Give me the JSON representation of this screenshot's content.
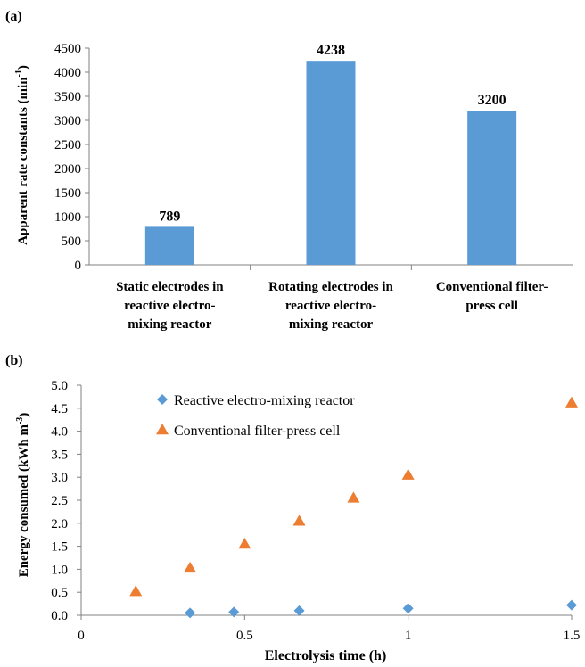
{
  "chart_data": [
    {
      "panel_label": "(a)",
      "type": "bar",
      "categories": [
        [
          "Static electrodes in",
          "reactive electro-",
          "mixing reactor"
        ],
        [
          "Rotating electrodes in",
          "reactive electro-",
          "mixing reactor"
        ],
        [
          "Conventional filter-",
          "press cell"
        ]
      ],
      "values": [
        789,
        4238,
        3200
      ],
      "data_labels": [
        "789",
        "4238",
        "3200"
      ],
      "ylabel": "Apparent  rate constants (min",
      "ylabel_sup": "-1",
      "ylabel_tail": ")",
      "ylim": [
        0,
        4500
      ],
      "yticks": [
        0,
        500,
        1000,
        1500,
        2000,
        2500,
        3000,
        3500,
        4000,
        4500
      ],
      "grid": false,
      "bar_color": "#5B9BD5"
    },
    {
      "panel_label": "(b)",
      "type": "scatter",
      "xlabel": "Electrolysis time (h)",
      "ylabel": "Energy consumed (kWh m",
      "ylabel_sup": "-3",
      "ylabel_tail": ")",
      "xlim": [
        0,
        1.5
      ],
      "ylim": [
        0,
        5.0
      ],
      "xticks": [
        0,
        0.5,
        1,
        1.5
      ],
      "xtick_labels": [
        "0",
        "0.5",
        "1",
        "1.5"
      ],
      "yticks": [
        0,
        0.5,
        1,
        1.5,
        2,
        2.5,
        3,
        3.5,
        4,
        4.5,
        5
      ],
      "ytick_labels": [
        "0.0",
        "0.5",
        "1.0",
        "1.5",
        "2.0",
        "2.5",
        "3.0",
        "3.5",
        "4.0",
        "4.5",
        "5.0"
      ],
      "legend_position": "top-left",
      "series": [
        {
          "name": "Reactive electro-mixing reactor",
          "marker": "diamond",
          "color": "#5B9BD5",
          "x": [
            0.333,
            0.467,
            0.667,
            1.0,
            1.5
          ],
          "y": [
            0.05,
            0.07,
            0.1,
            0.15,
            0.22
          ]
        },
        {
          "name": "Conventional filter-press cell",
          "marker": "triangle",
          "color": "#ED7D31",
          "x": [
            0.167,
            0.333,
            0.5,
            0.667,
            0.833,
            1.0,
            1.5
          ],
          "y": [
            0.52,
            1.03,
            1.55,
            2.05,
            2.55,
            3.05,
            4.62
          ]
        }
      ]
    }
  ]
}
